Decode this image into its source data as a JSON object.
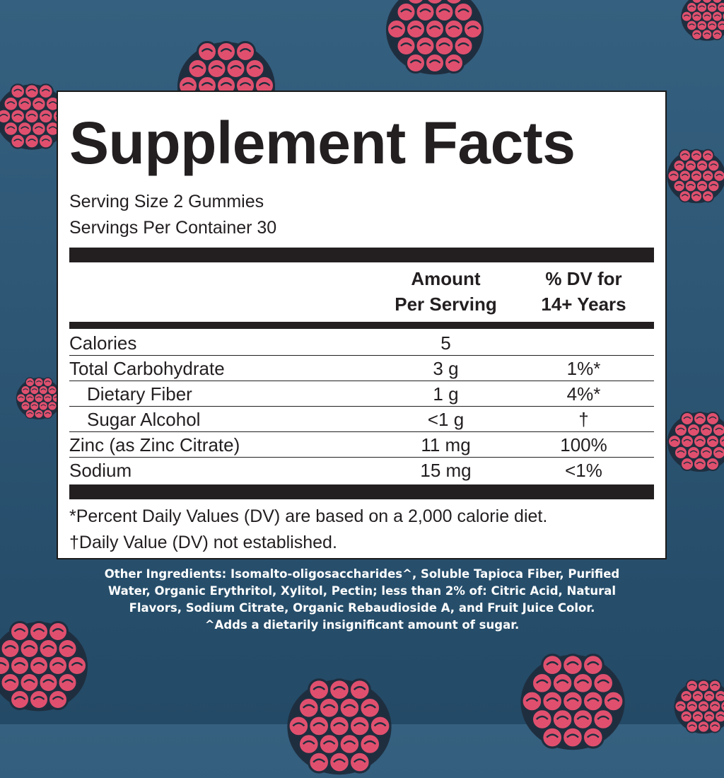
{
  "title": "Supplement Facts",
  "serving_size": "Serving Size 2 Gummies",
  "servings_per_container": "Servings Per Container 30",
  "columns": {
    "amount_line1": "Amount",
    "amount_line2": "Per Serving",
    "dv_line1": "% DV for",
    "dv_line2": "14+ Years"
  },
  "rows": [
    {
      "name": "Calories",
      "amount": "5",
      "dv": ""
    },
    {
      "name": "Total Carbohydrate",
      "amount": "3 g",
      "dv": "1%*"
    },
    {
      "name": "Dietary Fiber",
      "amount": "1 g",
      "dv": "4%*"
    },
    {
      "name": "Sugar Alcohol",
      "amount": "<1 g",
      "dv": "†"
    },
    {
      "name": "Zinc (as Zinc Citrate)",
      "amount": "11 mg",
      "dv": "100%"
    },
    {
      "name": "Sodium",
      "amount": "15 mg",
      "dv": "<1%"
    }
  ],
  "footnotes": [
    "*Percent Daily Values (DV) are based on a 2,000 calorie diet.",
    "†Daily Value (DV) not established."
  ],
  "other_ingredients": [
    "Other Ingredients: Isomalto-oligosaccharides^, Soluble Tapioca Fiber, Purified",
    "Water, Organic Erythritol, Xylitol, Pectin; less than 2% of: Citric Acid, Natural",
    "Flavors, Sodium Citrate, Organic Rebaudioside A, and Fruit Juice Color.",
    "^Adds a dietarily insignificant amount of sugar."
  ],
  "colors": {
    "background": "#2c5573",
    "berry": "#e0506e",
    "leaf": "#3fae8a",
    "text": "#231f20"
  }
}
